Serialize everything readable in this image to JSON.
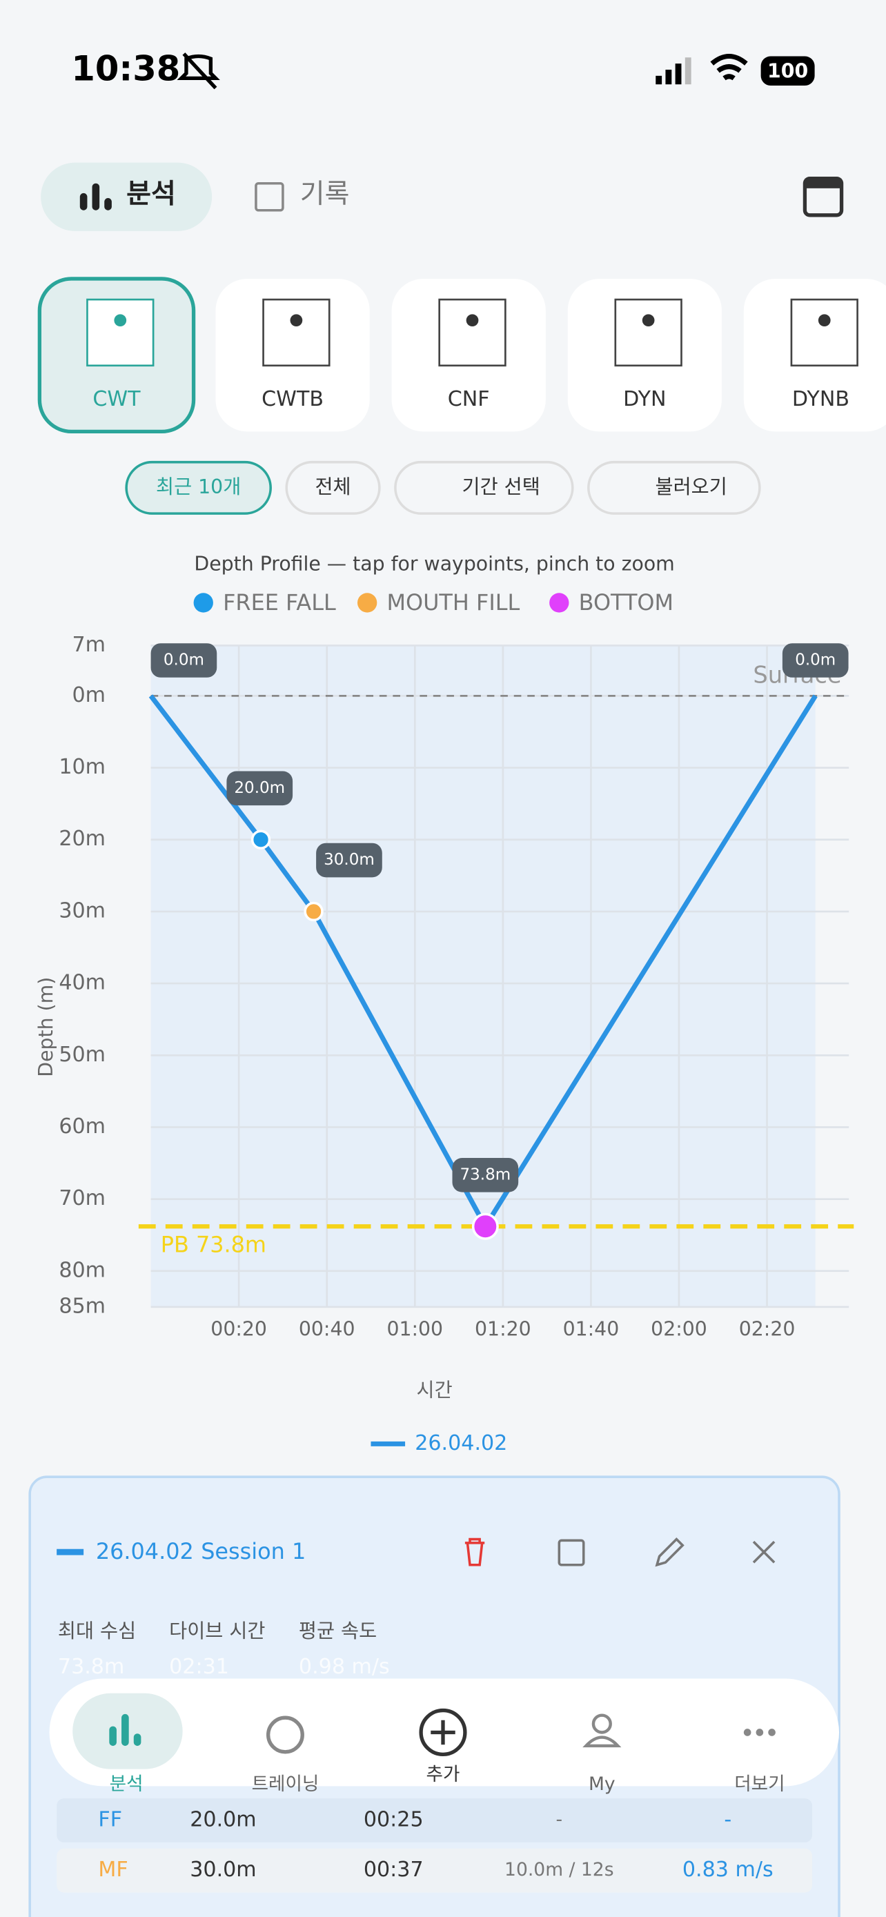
{
  "status_bar": {
    "time": "10:38",
    "battery": "100"
  },
  "tabs": [
    "분석",
    "기록"
  ],
  "disciplines": [
    "CWT",
    "CWTB",
    "CNF",
    "DYN",
    "DYNB"
  ],
  "filters": [
    "최근 10개",
    "전체",
    "기간 선택",
    "불러오기"
  ],
  "chart_data": {
    "type": "line",
    "title": "Depth Profile — tap for waypoints, pinch to zoom",
    "x_label": "시간",
    "y_label": "Depth (m)",
    "x": [
      0,
      25,
      37,
      76,
      151
    ],
    "series": [
      {
        "name": "26.04.02",
        "color": "#2b93e3",
        "values": [
          0,
          20,
          30,
          73.8,
          0
        ],
        "value_labels": [
          "0.0m",
          "20.0m",
          "30.0m",
          "73.8m",
          "0.0m"
        ]
      }
    ],
    "waypoints": [
      {
        "name": "FREE FALL",
        "color": "#1e9be8",
        "x": 25,
        "value": 20
      },
      {
        "name": "MOUTH FILL",
        "color": "#f7ac45",
        "x": 37,
        "value": 30
      },
      {
        "name": "BOTTOM",
        "color": "#e040fb",
        "x": 76,
        "value": 73.8
      }
    ],
    "pb": {
      "label": "PB 73.8m",
      "value": 73.8,
      "color": "#f5d319"
    },
    "surface": {
      "label": "Surface",
      "value": 0
    },
    "xlim": [
      0,
      158.6
    ],
    "ylim": [
      -7,
      85
    ],
    "xticks": [
      {
        "value": 20,
        "label": "00:20"
      },
      {
        "value": 40,
        "label": "00:40"
      },
      {
        "value": 60,
        "label": "01:00"
      },
      {
        "value": 80,
        "label": "01:20"
      },
      {
        "value": 100,
        "label": "01:40"
      },
      {
        "value": 120,
        "label": "02:00"
      },
      {
        "value": 140,
        "label": "02:20"
      }
    ],
    "yticks": [
      {
        "value": -7,
        "label": "7m"
      },
      {
        "value": 0,
        "label": "0m"
      },
      {
        "value": 10,
        "label": "10m"
      },
      {
        "value": 20,
        "label": "20m"
      },
      {
        "value": 30,
        "label": "30m"
      },
      {
        "value": 40,
        "label": "40m"
      },
      {
        "value": 50,
        "label": "50m"
      },
      {
        "value": 60,
        "label": "60m"
      },
      {
        "value": 70,
        "label": "70m"
      },
      {
        "value": 80,
        "label": "80m"
      },
      {
        "value": 85,
        "label": "85m"
      }
    ],
    "grid": true
  },
  "session": {
    "date": "26.04.02",
    "name": "Session 1",
    "stats": [
      {
        "label": "최대 수심",
        "value": "73.8m"
      },
      {
        "label": "다이브 시간",
        "value": "02:31"
      },
      {
        "label": "평균 속도",
        "value": "0.98 m/s"
      }
    ],
    "rows": [
      [
        "FF",
        "20.0m",
        "00:25",
        "-",
        "-"
      ],
      [
        "MF",
        "30.0m",
        "00:37",
        "10.0m / 12s",
        "0.83 m/s"
      ]
    ]
  },
  "nav": [
    "분석",
    "트레이닝",
    "추가",
    "My",
    "더보기"
  ]
}
